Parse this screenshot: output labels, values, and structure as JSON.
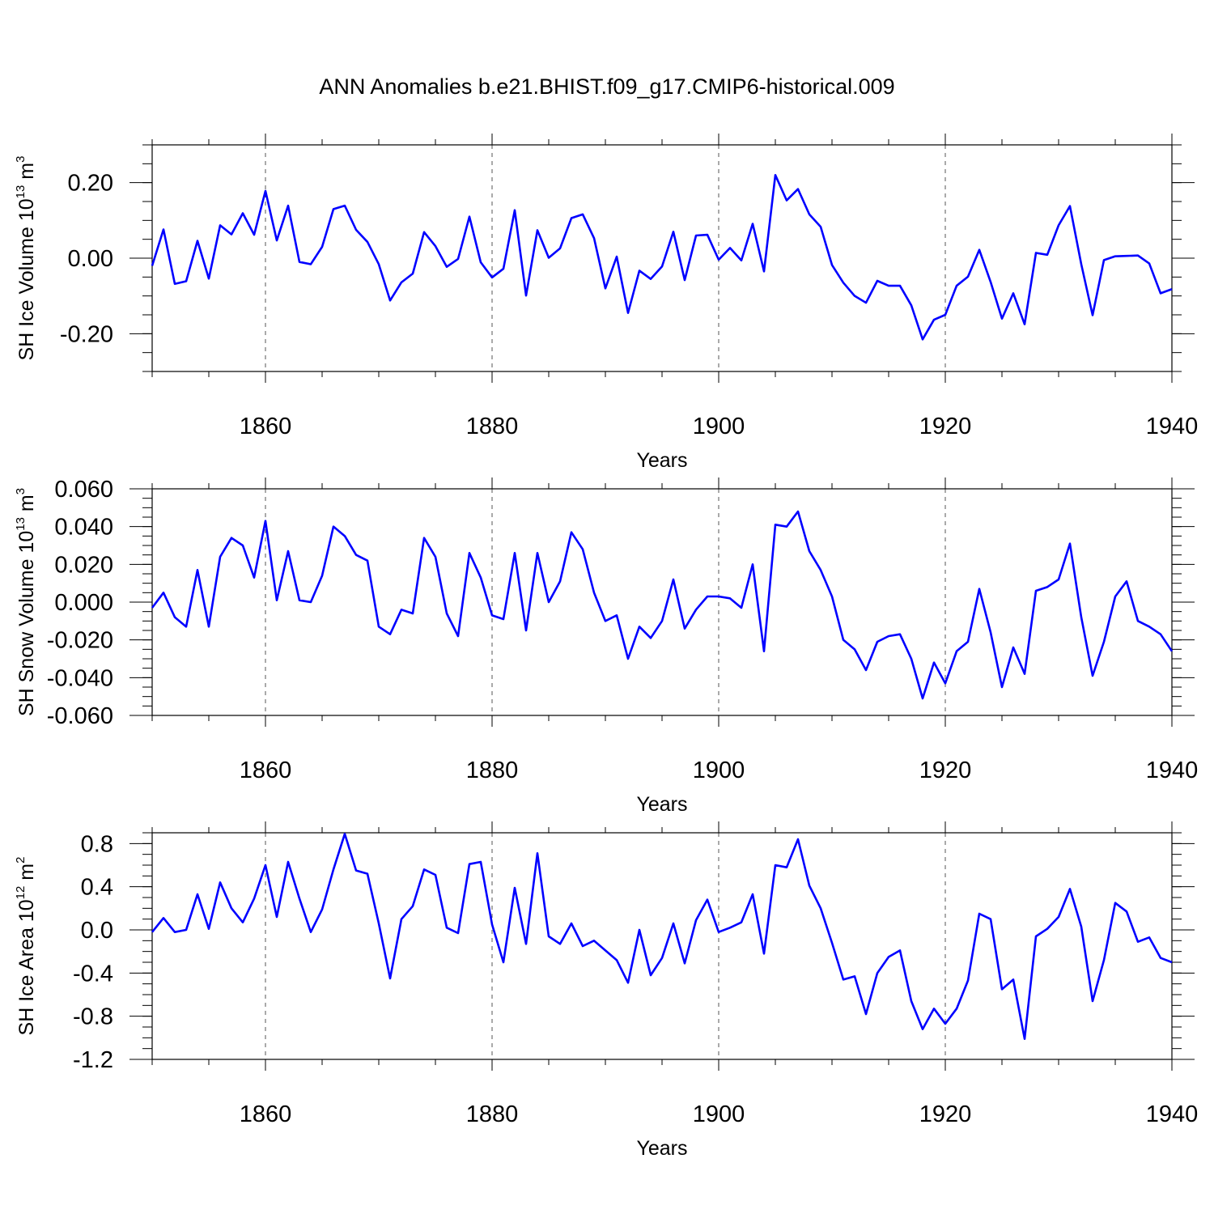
{
  "figure_title": "ANN Anomalies b.e21.BHIST.f09_g17.CMIP6-historical.009",
  "series_color": "#0000ff",
  "chart_data": [
    {
      "type": "line",
      "title": "ANN Anomalies b.e21.BHIST.f09_g17.CMIP6-historical.009",
      "ylabel_main": "SH Ice Volume 10",
      "ylabel_sup": "13",
      "ylabel_unit": " m",
      "ylabel_unit_sup": "3",
      "xlabel": "Years",
      "xlim": [
        1850,
        1940
      ],
      "ylim": [
        -0.3,
        0.3
      ],
      "yticks": [
        -0.2,
        0.0,
        0.2
      ],
      "ytick_labels": [
        "-0.20",
        "0.00",
        "0.20"
      ],
      "yminor_step": 0.05,
      "xticks": [
        1860,
        1880,
        1900,
        1920,
        1940
      ],
      "xtick_labels": [
        "1860",
        "1880",
        "1900",
        "1920",
        "1940"
      ],
      "x_start": 1850,
      "values": [
        -0.02,
        0.076,
        -0.068,
        -0.061,
        0.046,
        -0.054,
        0.087,
        0.063,
        0.119,
        0.062,
        0.178,
        0.047,
        0.139,
        -0.01,
        -0.016,
        0.03,
        0.13,
        0.139,
        0.075,
        0.043,
        -0.016,
        -0.112,
        -0.064,
        -0.041,
        0.069,
        0.032,
        -0.023,
        -0.002,
        0.11,
        -0.011,
        -0.051,
        -0.028,
        0.127,
        -0.099,
        0.074,
        0.001,
        0.026,
        0.106,
        0.116,
        0.053,
        -0.08,
        0.004,
        -0.145,
        -0.033,
        -0.055,
        -0.022,
        0.07,
        -0.058,
        0.06,
        0.062,
        -0.004,
        0.027,
        -0.006,
        0.091,
        -0.035,
        0.22,
        0.153,
        0.183,
        0.116,
        0.083,
        -0.018,
        -0.065,
        -0.1,
        -0.118,
        -0.06,
        -0.073,
        -0.073,
        -0.125,
        -0.215,
        -0.163,
        -0.15,
        -0.073,
        -0.049,
        0.022,
        -0.063,
        -0.16,
        -0.093,
        -0.175,
        0.014,
        0.009,
        0.087,
        0.138,
        -0.016,
        -0.151,
        -0.005,
        0.005,
        0.006,
        0.007,
        -0.014,
        -0.093,
        -0.082
      ],
      "grid": "dashed vertical at major x ticks"
    },
    {
      "type": "line",
      "ylabel_main": "SH Snow Volume 10",
      "ylabel_sup": "13",
      "ylabel_unit": " m",
      "ylabel_unit_sup": "3",
      "xlabel": "Years",
      "xlim": [
        1850,
        1940
      ],
      "ylim": [
        -0.06,
        0.06
      ],
      "yticks": [
        -0.06,
        -0.04,
        -0.02,
        0.0,
        0.02,
        0.04,
        0.06
      ],
      "ytick_labels": [
        "-0.060",
        "-0.040",
        "-0.020",
        "0.000",
        "0.020",
        "0.040",
        "0.060"
      ],
      "yminor_step": 0.005,
      "xticks": [
        1860,
        1880,
        1900,
        1920,
        1940
      ],
      "xtick_labels": [
        "1860",
        "1880",
        "1900",
        "1920",
        "1940"
      ],
      "x_start": 1850,
      "values": [
        -0.003,
        0.005,
        -0.008,
        -0.013,
        0.017,
        -0.013,
        0.024,
        0.034,
        0.03,
        0.013,
        0.043,
        0.001,
        0.027,
        0.001,
        0.0,
        0.014,
        0.04,
        0.035,
        0.025,
        0.022,
        -0.013,
        -0.017,
        -0.004,
        -0.006,
        0.034,
        0.024,
        -0.006,
        -0.018,
        0.026,
        0.013,
        -0.007,
        -0.009,
        0.026,
        -0.015,
        0.026,
        0.0,
        0.011,
        0.037,
        0.028,
        0.005,
        -0.01,
        -0.007,
        -0.03,
        -0.013,
        -0.019,
        -0.01,
        0.012,
        -0.014,
        -0.004,
        0.003,
        0.003,
        0.002,
        -0.003,
        0.02,
        -0.026,
        0.041,
        0.04,
        0.048,
        0.027,
        0.017,
        0.003,
        -0.02,
        -0.025,
        -0.036,
        -0.021,
        -0.018,
        -0.017,
        -0.03,
        -0.051,
        -0.032,
        -0.043,
        -0.026,
        -0.021,
        0.007,
        -0.016,
        -0.045,
        -0.024,
        -0.038,
        0.006,
        0.008,
        0.012,
        0.031,
        -0.008,
        -0.039,
        -0.021,
        0.003,
        0.011,
        -0.01,
        -0.013,
        -0.017,
        -0.026
      ],
      "grid": "dashed vertical at major x ticks"
    },
    {
      "type": "line",
      "ylabel_main": "SH Ice Area 10",
      "ylabel_sup": "12",
      "ylabel_unit": " m",
      "ylabel_unit_sup": "2",
      "xlabel": "Years",
      "xlim": [
        1850,
        1940
      ],
      "ylim": [
        -1.2,
        0.9
      ],
      "yticks": [
        -1.2,
        -0.8,
        -0.4,
        0.0,
        0.4,
        0.8
      ],
      "ytick_labels": [
        "-1.2",
        "-0.8",
        "-0.4",
        "0.0",
        "0.4",
        "0.8"
      ],
      "yminor_step": 0.1,
      "xticks": [
        1860,
        1880,
        1900,
        1920,
        1940
      ],
      "xtick_labels": [
        "1860",
        "1880",
        "1900",
        "1920",
        "1940"
      ],
      "x_start": 1850,
      "values": [
        -0.02,
        0.11,
        -0.02,
        0.0,
        0.33,
        0.01,
        0.44,
        0.2,
        0.07,
        0.29,
        0.6,
        0.12,
        0.63,
        0.29,
        -0.02,
        0.19,
        0.56,
        0.89,
        0.55,
        0.52,
        0.06,
        -0.45,
        0.1,
        0.22,
        0.56,
        0.51,
        0.02,
        -0.03,
        0.61,
        0.63,
        0.05,
        -0.3,
        0.39,
        -0.13,
        0.71,
        -0.06,
        -0.13,
        0.06,
        -0.15,
        -0.1,
        -0.19,
        -0.28,
        -0.49,
        0.0,
        -0.42,
        -0.26,
        0.06,
        -0.31,
        0.09,
        0.28,
        -0.02,
        0.02,
        0.07,
        0.33,
        -0.22,
        0.6,
        0.58,
        0.84,
        0.41,
        0.2,
        -0.12,
        -0.46,
        -0.43,
        -0.78,
        -0.4,
        -0.25,
        -0.19,
        -0.66,
        -0.92,
        -0.73,
        -0.87,
        -0.73,
        -0.47,
        0.15,
        0.1,
        -0.55,
        -0.46,
        -1.01,
        -0.06,
        0.01,
        0.12,
        0.38,
        0.03,
        -0.66,
        -0.28,
        0.25,
        0.17,
        -0.11,
        -0.07,
        -0.26,
        -0.3
      ],
      "grid": "dashed vertical at major x ticks"
    }
  ]
}
